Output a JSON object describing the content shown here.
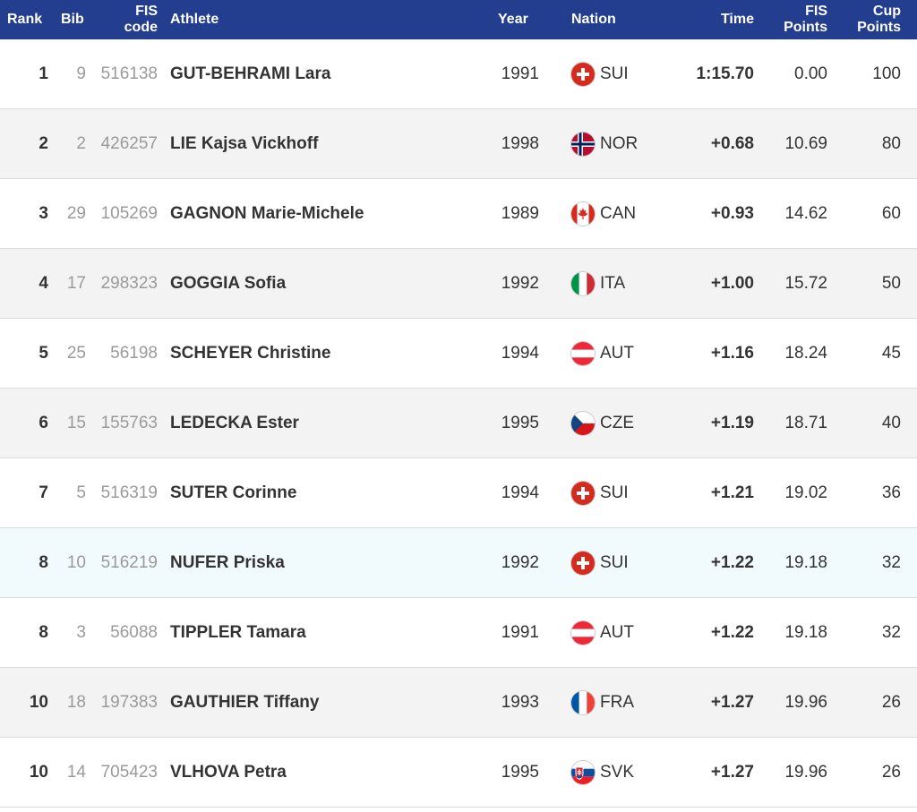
{
  "header": {
    "rank": "Rank",
    "bib": "Bib",
    "code_line1": "FIS",
    "code_line2": "code",
    "athlete": "Athlete",
    "year": "Year",
    "nation": "Nation",
    "time": "Time",
    "fis_line1": "FIS",
    "fis_line2": "Points",
    "cup_line1": "Cup",
    "cup_line2": "Points"
  },
  "colors": {
    "header_bg": "#233d8f",
    "row_alt": "#f3f3f3",
    "row_highlight": "#f1fbfd"
  },
  "rows": [
    {
      "rank": "1",
      "bib": "9",
      "code": "516138",
      "athlete": "GUT-BEHRAMI Lara",
      "year": "1991",
      "flag_icon": "switzerland-flag-icon",
      "nation": "SUI",
      "time": "1:15.70",
      "fis_points": "0.00",
      "cup_points": "100"
    },
    {
      "rank": "2",
      "bib": "2",
      "code": "426257",
      "athlete": "LIE Kajsa Vickhoff",
      "year": "1998",
      "flag_icon": "norway-flag-icon",
      "nation": "NOR",
      "time": "+0.68",
      "fis_points": "10.69",
      "cup_points": "80"
    },
    {
      "rank": "3",
      "bib": "29",
      "code": "105269",
      "athlete": "GAGNON Marie-Michele",
      "year": "1989",
      "flag_icon": "canada-flag-icon",
      "nation": "CAN",
      "time": "+0.93",
      "fis_points": "14.62",
      "cup_points": "60"
    },
    {
      "rank": "4",
      "bib": "17",
      "code": "298323",
      "athlete": "GOGGIA Sofia",
      "year": "1992",
      "flag_icon": "italy-flag-icon",
      "nation": "ITA",
      "time": "+1.00",
      "fis_points": "15.72",
      "cup_points": "50"
    },
    {
      "rank": "5",
      "bib": "25",
      "code": "56198",
      "athlete": "SCHEYER Christine",
      "year": "1994",
      "flag_icon": "austria-flag-icon",
      "nation": "AUT",
      "time": "+1.16",
      "fis_points": "18.24",
      "cup_points": "45"
    },
    {
      "rank": "6",
      "bib": "15",
      "code": "155763",
      "athlete": "LEDECKA Ester",
      "year": "1995",
      "flag_icon": "czech-flag-icon",
      "nation": "CZE",
      "time": "+1.19",
      "fis_points": "18.71",
      "cup_points": "40"
    },
    {
      "rank": "7",
      "bib": "5",
      "code": "516319",
      "athlete": "SUTER Corinne",
      "year": "1994",
      "flag_icon": "switzerland-flag-icon",
      "nation": "SUI",
      "time": "+1.21",
      "fis_points": "19.02",
      "cup_points": "36"
    },
    {
      "rank": "8",
      "bib": "10",
      "code": "516219",
      "athlete": "NUFER Priska",
      "year": "1992",
      "flag_icon": "switzerland-flag-icon",
      "nation": "SUI",
      "time": "+1.22",
      "fis_points": "19.18",
      "cup_points": "32"
    },
    {
      "rank": "8",
      "bib": "3",
      "code": "56088",
      "athlete": "TIPPLER Tamara",
      "year": "1991",
      "flag_icon": "austria-flag-icon",
      "nation": "AUT",
      "time": "+1.22",
      "fis_points": "19.18",
      "cup_points": "32"
    },
    {
      "rank": "10",
      "bib": "18",
      "code": "197383",
      "athlete": "GAUTHIER Tiffany",
      "year": "1993",
      "flag_icon": "france-flag-icon",
      "nation": "FRA",
      "time": "+1.27",
      "fis_points": "19.96",
      "cup_points": "26"
    },
    {
      "rank": "10",
      "bib": "14",
      "code": "705423",
      "athlete": "VLHOVA Petra",
      "year": "1995",
      "flag_icon": "slovakia-flag-icon",
      "nation": "SVK",
      "time": "+1.27",
      "fis_points": "19.96",
      "cup_points": "26"
    }
  ]
}
